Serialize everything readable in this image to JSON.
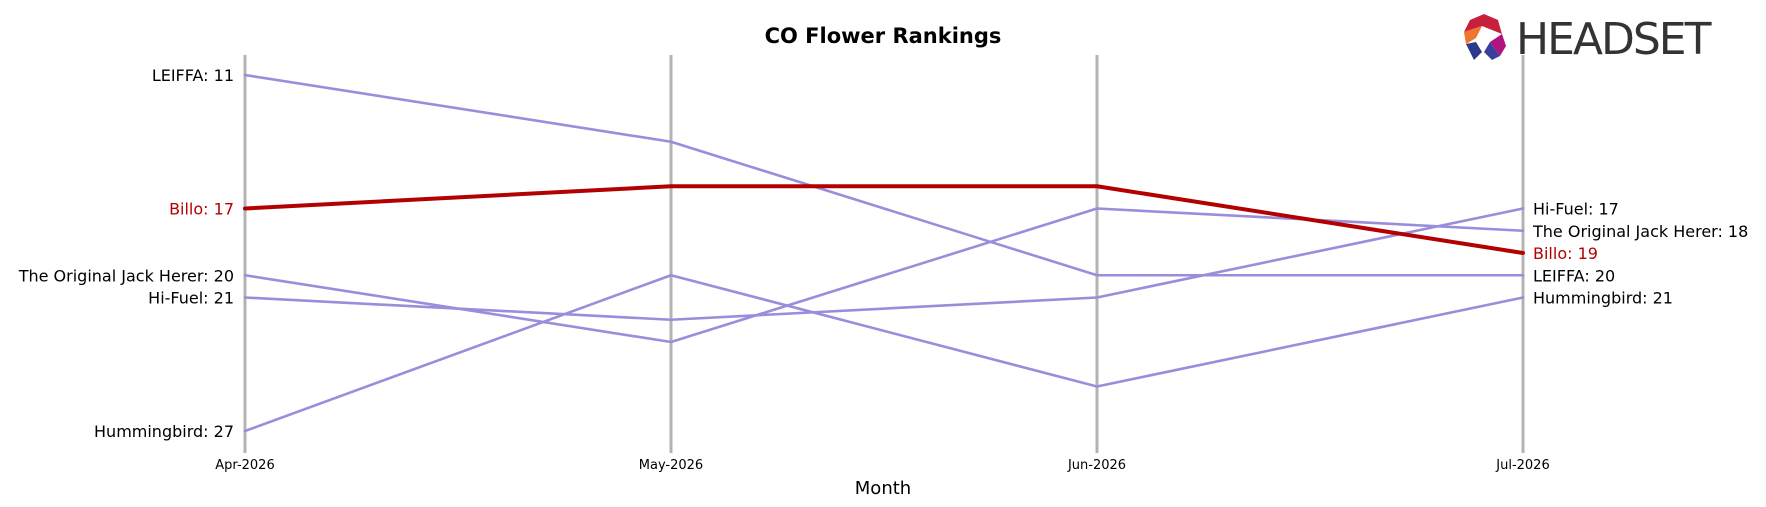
{
  "chart_data": {
    "type": "line",
    "title": "CO Flower Rankings",
    "xlabel": "Month",
    "ylabel": "",
    "categories": [
      "Apr-2026",
      "May-2026",
      "Jun-2026",
      "Jul-2026"
    ],
    "y_inverted": true,
    "ylim": [
      10.2,
      28.2
    ],
    "grid": "vertical month lines",
    "highlight_color": "#b30000",
    "default_color": "#9a8ddb",
    "series": [
      {
        "name": "LEIFFA",
        "values": [
          11,
          14,
          20,
          20
        ],
        "highlight": false
      },
      {
        "name": "The Original Jack Herer",
        "values": [
          20,
          23,
          17,
          18
        ],
        "highlight": false
      },
      {
        "name": "Hi-Fuel",
        "values": [
          21,
          22,
          21,
          17
        ],
        "highlight": false
      },
      {
        "name": "Hummingbird",
        "values": [
          27,
          20,
          25,
          21
        ],
        "highlight": false
      },
      {
        "name": "Billo",
        "values": [
          17,
          16,
          16,
          19
        ],
        "highlight": true
      }
    ],
    "start_labels": [
      {
        "text": "LEIFFA: 11",
        "series": "LEIFFA"
      },
      {
        "text": "Billo: 17",
        "series": "Billo"
      },
      {
        "text": "The Original Jack Herer: 20",
        "series": "The Original Jack Herer"
      },
      {
        "text": "Hi-Fuel: 21",
        "series": "Hi-Fuel"
      },
      {
        "text": "Hummingbird: 27",
        "series": "Hummingbird"
      }
    ],
    "end_labels": [
      {
        "text": "Hi-Fuel: 17",
        "series": "Hi-Fuel"
      },
      {
        "text": "The Original Jack Herer: 18",
        "series": "The Original Jack Herer"
      },
      {
        "text": "Billo: 19",
        "series": "Billo"
      },
      {
        "text": "LEIFFA: 20",
        "series": "LEIFFA"
      },
      {
        "text": "Hummingbird: 21",
        "series": "Hummingbird"
      }
    ]
  },
  "logo": {
    "text": "HEADSET"
  }
}
